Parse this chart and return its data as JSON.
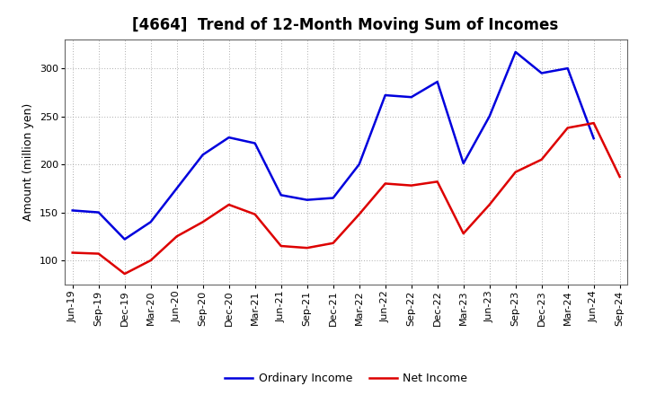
{
  "title": "[4664]  Trend of 12-Month Moving Sum of Incomes",
  "ylabel": "Amount (million yen)",
  "x_labels": [
    "Jun-19",
    "Sep-19",
    "Dec-19",
    "Mar-20",
    "Jun-20",
    "Sep-20",
    "Dec-20",
    "Mar-21",
    "Jun-21",
    "Sep-21",
    "Dec-21",
    "Mar-22",
    "Jun-22",
    "Sep-22",
    "Dec-22",
    "Mar-23",
    "Jun-23",
    "Sep-23",
    "Dec-23",
    "Mar-24",
    "Jun-24",
    "Sep-24"
  ],
  "ordinary_income": [
    152,
    150,
    122,
    140,
    175,
    210,
    228,
    222,
    168,
    163,
    165,
    200,
    272,
    270,
    286,
    201,
    250,
    317,
    295,
    300,
    227,
    null
  ],
  "net_income": [
    108,
    107,
    86,
    100,
    125,
    140,
    158,
    148,
    115,
    113,
    118,
    148,
    180,
    178,
    182,
    128,
    158,
    192,
    205,
    238,
    243,
    187
  ],
  "ordinary_color": "#0000dd",
  "net_color": "#dd0000",
  "ylim_min": 75,
  "ylim_max": 330,
  "yticks": [
    100,
    150,
    200,
    250,
    300
  ],
  "legend_labels": [
    "Ordinary Income",
    "Net Income"
  ],
  "background_color": "#ffffff",
  "grid_color": "#999999",
  "title_fontsize": 12,
  "axis_label_fontsize": 9,
  "tick_fontsize": 8,
  "legend_fontsize": 9,
  "linewidth": 1.8
}
